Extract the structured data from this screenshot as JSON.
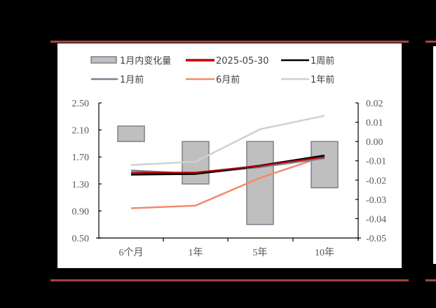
{
  "chart_data": {
    "type": "bar+line",
    "title": "",
    "categories": [
      "6个月",
      "1年",
      "5年",
      "10年"
    ],
    "left_axis": {
      "ylim": [
        0.5,
        2.5
      ],
      "ticks": [
        "2.50",
        "2.10",
        "1.70",
        "1.30",
        "0.90",
        "0.50"
      ]
    },
    "right_axis": {
      "ylim": [
        -0.05,
        0.02
      ],
      "ticks": [
        "0.02",
        "0.01",
        "0.00",
        "-0.01",
        "-0.02",
        "-0.03",
        "-0.04",
        "-0.05"
      ]
    },
    "bars": {
      "name": "1月内变化量",
      "axis": "right",
      "values": [
        0.008,
        -0.022,
        -0.043,
        -0.024
      ],
      "color": "#bfbfbf",
      "border": "#7f7f8f"
    },
    "series": [
      {
        "name": "2025-05-30",
        "axis": "left",
        "values": [
          1.47,
          1.47,
          1.57,
          1.7
        ],
        "color": "#c00000"
      },
      {
        "name": "1周前",
        "axis": "left",
        "values": [
          1.44,
          1.45,
          1.57,
          1.72
        ],
        "color": "#000000"
      },
      {
        "name": "1月前",
        "axis": "left",
        "values": [
          1.5,
          1.45,
          1.55,
          1.68
        ],
        "color": "#7f7f8f"
      },
      {
        "name": "6月前",
        "axis": "left",
        "values": [
          0.94,
          0.98,
          1.39,
          1.71
        ],
        "color": "#f4896b"
      },
      {
        "name": "1年前",
        "axis": "left",
        "values": [
          1.58,
          1.63,
          2.11,
          2.31
        ],
        "color": "#d0d0d0"
      }
    ],
    "legend": {
      "position": "top",
      "entries": [
        "1月内变化量",
        "2025-05-30",
        "1周前",
        "1月前",
        "6月前",
        "1年前"
      ]
    },
    "grid": false
  },
  "legend": {
    "bar_label": "1月内变化量",
    "s1": "2025-05-30",
    "s2": "1周前",
    "s3": "1月前",
    "s4": "6月前",
    "s5": "1年前"
  },
  "axes": {
    "left": [
      "2.50",
      "2.10",
      "1.70",
      "1.30",
      "0.90",
      "0.50"
    ],
    "right": [
      "0.02",
      "0.01",
      "0.00",
      "-0.01",
      "-0.02",
      "-0.03",
      "-0.04",
      "-0.05"
    ],
    "x": [
      "6个月",
      "1年",
      "5年",
      "10年"
    ]
  }
}
